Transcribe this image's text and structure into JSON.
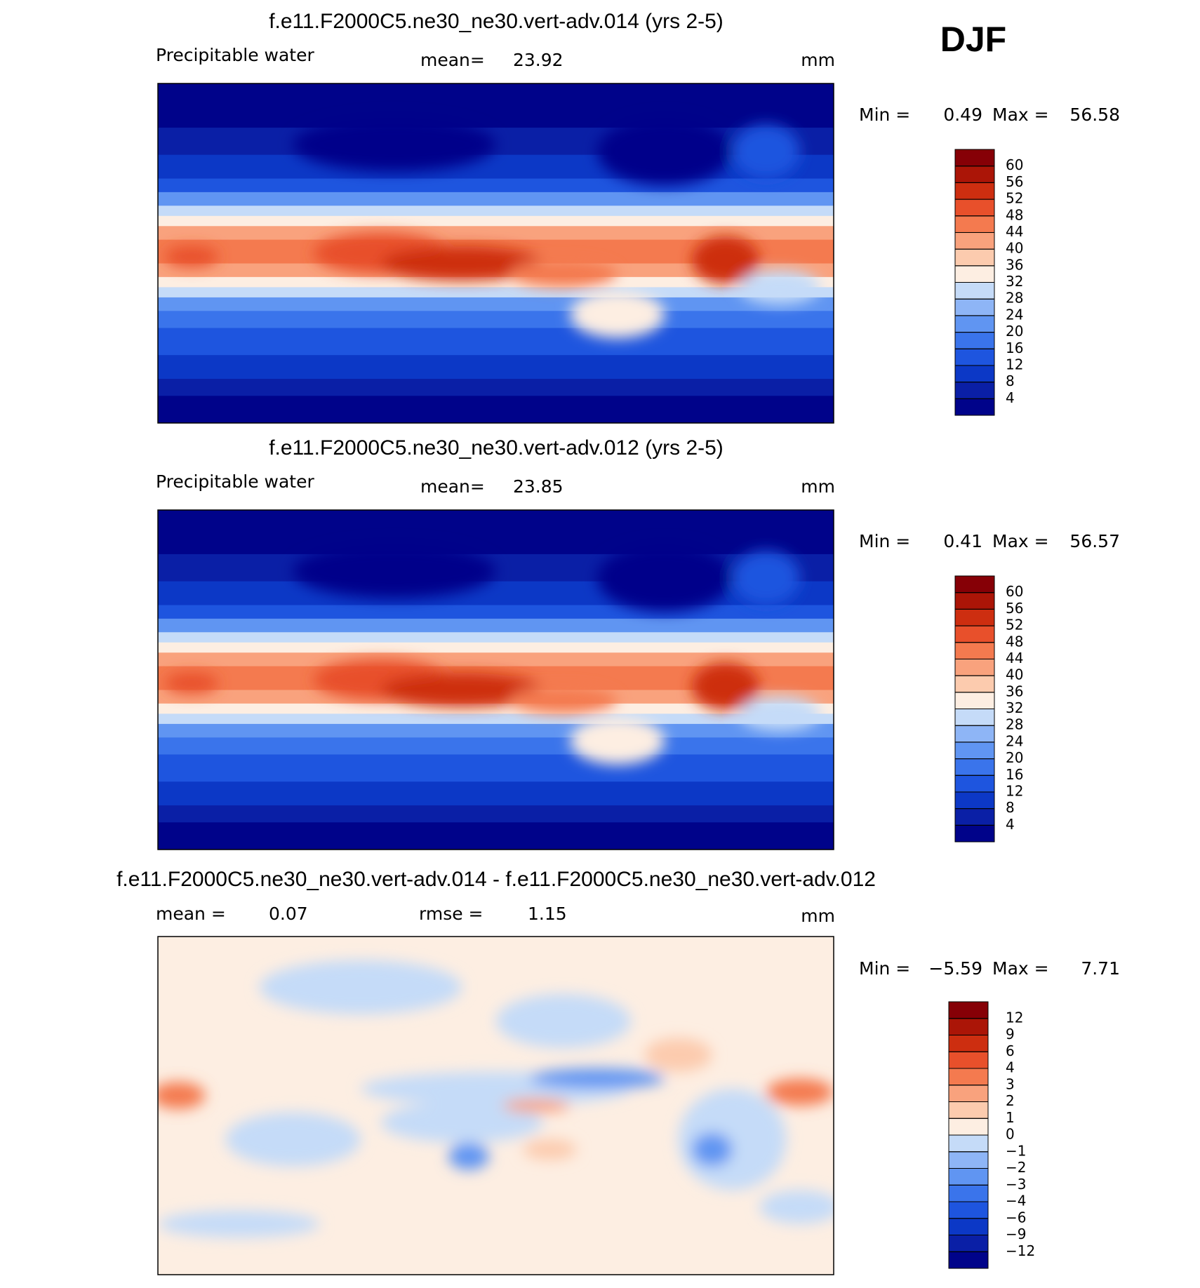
{
  "season": "DJF",
  "panels": [
    {
      "title": "f.e11.F2000C5.ne30_ne30.vert-adv.014 (yrs 2-5)",
      "variable": "Precipitable water",
      "mean_label": "mean=",
      "mean": 23.92,
      "units": "mm",
      "min_label": "Min =",
      "min": 0.49,
      "max_label": "Max =",
      "max": 56.58,
      "levels": [
        4,
        8,
        12,
        16,
        20,
        24,
        28,
        32,
        36,
        40,
        44,
        48,
        52,
        56,
        60
      ],
      "colors": [
        "#00038a",
        "#0a1fa6",
        "#0c38c6",
        "#1e55df",
        "#3a74eb",
        "#6095f2",
        "#8eb5f6",
        "#c5dbf8",
        "#fdeee2",
        "#fccbae",
        "#f9a27d",
        "#f47a4f",
        "#e8502b",
        "#cd2e10",
        "#ab1507",
        "#860006"
      ]
    },
    {
      "title": "f.e11.F2000C5.ne30_ne30.vert-adv.012 (yrs 2-5)",
      "variable": "Precipitable water",
      "mean_label": "mean=",
      "mean": 23.85,
      "units": "mm",
      "min_label": "Min =",
      "min": 0.41,
      "max_label": "Max =",
      "max": 56.57,
      "levels": [
        4,
        8,
        12,
        16,
        20,
        24,
        28,
        32,
        36,
        40,
        44,
        48,
        52,
        56,
        60
      ],
      "colors": [
        "#00038a",
        "#0a1fa6",
        "#0c38c6",
        "#1e55df",
        "#3a74eb",
        "#6095f2",
        "#8eb5f6",
        "#c5dbf8",
        "#fdeee2",
        "#fccbae",
        "#f9a27d",
        "#f47a4f",
        "#e8502b",
        "#cd2e10",
        "#ab1507",
        "#860006"
      ]
    },
    {
      "title": "f.e11.F2000C5.ne30_ne30.vert-adv.014 - f.e11.F2000C5.ne30_ne30.vert-adv.012",
      "mean_label": "mean =",
      "mean": 0.07,
      "rmse_label": "rmse =",
      "rmse": 1.15,
      "units": "mm",
      "min_label": "Min =",
      "min": {
        "value": -5.59,
        "label": "−5.59"
      },
      "max_label": "Max =",
      "max": 7.71,
      "levels": [
        {
          "value": -12,
          "label": "−12"
        },
        {
          "value": -9,
          "label": "−9"
        },
        {
          "value": -6,
          "label": "−6"
        },
        {
          "value": -4,
          "label": "−4"
        },
        {
          "value": -3,
          "label": "−3"
        },
        {
          "value": -2,
          "label": "−2"
        },
        {
          "value": -1,
          "label": "−1"
        },
        0,
        1,
        2,
        3,
        4,
        6,
        9,
        12
      ],
      "colors": [
        "#00038a",
        "#0a1fa6",
        "#0c38c6",
        "#1e55df",
        "#3a74eb",
        "#6095f2",
        "#8eb5f6",
        "#c5dbf8",
        "#fdeee2",
        "#fccbae",
        "#f9a27d",
        "#f47a4f",
        "#e8502b",
        "#cd2e10",
        "#ab1507",
        "#860006"
      ]
    }
  ]
}
